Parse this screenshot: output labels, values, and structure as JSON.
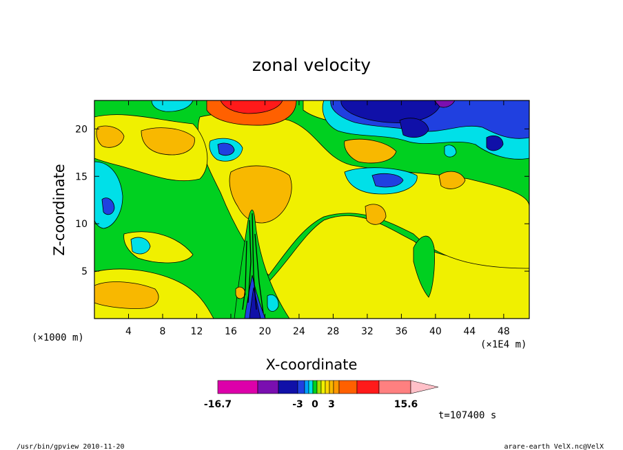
{
  "chart_data": {
    "type": "heatmap",
    "title": "zonal velocity",
    "xlabel": "X-coordinate",
    "ylabel": "Z-coordinate",
    "x_unit": "(×1E4 m)",
    "z_unit": "(×1000 m)",
    "xlim": [
      0,
      51
    ],
    "ylim": [
      0,
      23
    ],
    "x_ticks": [
      "4",
      "8",
      "12",
      "16",
      "20",
      "24",
      "28",
      "32",
      "36",
      "40",
      "44",
      "48"
    ],
    "y_ticks": [
      "5",
      "10",
      "15",
      "20"
    ],
    "colorbar": {
      "colors": [
        "#dd00aa",
        "#7a0fb0",
        "#1010a8",
        "#2040e0",
        "#00a0ff",
        "#00e0e8",
        "#00d020",
        "#a0e000",
        "#f0f000",
        "#ffd800",
        "#f8b800",
        "#ff9800",
        "#ff6000",
        "#ff1a1a",
        "#ff8080",
        "#ffc0c8"
      ],
      "labels": [
        "-16.7",
        "-3",
        "0",
        "3",
        "15.6"
      ]
    },
    "time_label": "t=107400 s"
  },
  "footer": {
    "left": "/usr/bin/gpview  2010-11-20",
    "right": "arare-earth_VelX.nc@VelX"
  }
}
